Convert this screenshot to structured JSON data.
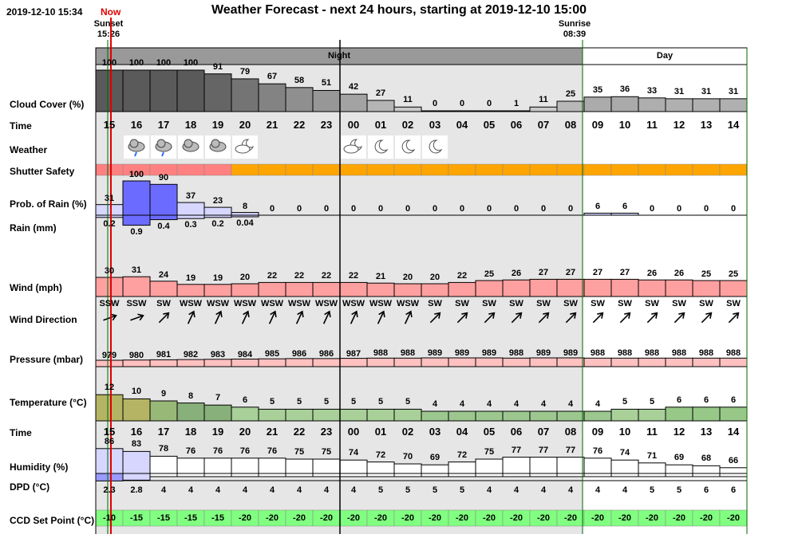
{
  "header": {
    "datetime": "2019-12-10 15:34",
    "now_label": "Now",
    "title": "Weather Forecast - next 24 hours, starting at 2019-12-10 15:00"
  },
  "sun": {
    "sunset_label": "Sunset",
    "sunset_time": "15:26",
    "sunrise_label": "Sunrise",
    "sunrise_time": "08:39"
  },
  "bands": {
    "night": "Night",
    "day": "Day"
  },
  "row_labels": {
    "cloud": "Cloud Cover (%)",
    "time": "Time",
    "weather": "Weather",
    "shutter": "Shutter Safety",
    "rain_prob": "Prob. of Rain (%)",
    "rain_mm": "Rain (mm)",
    "wind": "Wind (mph)",
    "wind_dir": "Wind Direction",
    "pressure": "Pressure (mbar)",
    "temperature": "Temperature (°C)",
    "time2": "Time",
    "humidity": "Humidity (%)",
    "dpd": "DPD (°C)",
    "ccd": "CCD Set Point (°C)"
  },
  "colors": {
    "night_bg": "#e6e6e6",
    "band_night": "#999999",
    "now_line": "#e00000",
    "sun_line": "#006600",
    "shutter_red": "#ff8080",
    "shutter_orange": "#ffa500",
    "wind_fill": "#ffa0a0",
    "pressure_fill": "#ffc0c0",
    "ccd_fill": "#80ff80",
    "rain_strong": "#6b6bff",
    "rain_light": "#d6d6ff"
  },
  "hours": [
    "15",
    "16",
    "17",
    "18",
    "19",
    "20",
    "21",
    "22",
    "23",
    "00",
    "01",
    "02",
    "03",
    "04",
    "05",
    "06",
    "07",
    "08",
    "09",
    "10",
    "11",
    "12",
    "13",
    "14"
  ],
  "cloud_cover": [
    100,
    100,
    100,
    100,
    91,
    79,
    67,
    58,
    51,
    42,
    27,
    11,
    0,
    0,
    0,
    1,
    11,
    25,
    35,
    36,
    33,
    31,
    31,
    31
  ],
  "weather_icons": [
    "",
    "rain-cloud-icon",
    "rain-cloud-icon",
    "cloud-icon",
    "cloud-icon",
    "partly-cloudy-moon-icon",
    "partly-cloudy-moon-icon",
    "moon-icon",
    "moon-icon",
    "moon-icon",
    "",
    "",
    "",
    "",
    "",
    "",
    "",
    "",
    "",
    "",
    "",
    "",
    "",
    ""
  ],
  "weather_icon_cols": [
    1,
    2,
    3,
    4,
    5,
    9,
    10,
    11,
    12
  ],
  "shutter_safety": [
    "unsafe",
    "unsafe",
    "unsafe",
    "unsafe",
    "unsafe",
    "marginal",
    "marginal",
    "marginal",
    "marginal",
    "marginal",
    "marginal",
    "marginal",
    "marginal",
    "marginal",
    "marginal",
    "marginal",
    "marginal",
    "marginal",
    "marginal",
    "marginal",
    "marginal",
    "marginal",
    "marginal",
    "marginal"
  ],
  "rain_prob": [
    31,
    100,
    90,
    37,
    23,
    8,
    0,
    0,
    0,
    0,
    0,
    0,
    0,
    0,
    0,
    0,
    0,
    0,
    6,
    6,
    0,
    0,
    0,
    0
  ],
  "rain_mm": [
    "0.2",
    "0.9",
    "0.4",
    "0.3",
    "0.2",
    "0.04",
    "",
    "",
    "",
    "",
    "",
    "",
    "",
    "",
    "",
    "",
    "",
    "",
    "",
    "",
    "",
    "",
    "",
    ""
  ],
  "wind_mph": [
    30,
    31,
    24,
    19,
    19,
    20,
    22,
    22,
    22,
    22,
    21,
    20,
    20,
    22,
    25,
    26,
    27,
    27,
    27,
    27,
    26,
    26,
    25,
    25
  ],
  "wind_dir": [
    "SSW",
    "SSW",
    "SW",
    "WSW",
    "WSW",
    "WSW",
    "WSW",
    "WSW",
    "WSW",
    "WSW",
    "WSW",
    "WSW",
    "SW",
    "SW",
    "SW",
    "SW",
    "SW",
    "SW",
    "SW",
    "SW",
    "SW",
    "SW",
    "SW",
    "SW"
  ],
  "pressure": [
    979,
    980,
    981,
    982,
    983,
    984,
    985,
    986,
    986,
    987,
    988,
    988,
    989,
    989,
    989,
    988,
    989,
    989,
    988,
    988,
    988,
    988,
    988,
    988
  ],
  "temperature": [
    12,
    10,
    9,
    8,
    7,
    6,
    5,
    5,
    5,
    5,
    5,
    5,
    4,
    4,
    4,
    4,
    4,
    4,
    4,
    5,
    5,
    6,
    6,
    6
  ],
  "humidity": [
    86,
    83,
    78,
    76,
    76,
    76,
    76,
    75,
    75,
    74,
    72,
    70,
    69,
    72,
    75,
    77,
    77,
    77,
    76,
    74,
    71,
    69,
    68,
    66
  ],
  "dpd": [
    "2.3",
    "2.8",
    "4",
    "4",
    "4",
    "4",
    "4",
    "4",
    "4",
    "4",
    "5",
    "5",
    "5",
    "5",
    "4",
    "4",
    "4",
    "4",
    "4",
    "4",
    "5",
    "5",
    "6",
    "6"
  ],
  "ccd_set_point": [
    -10,
    -15,
    -15,
    -15,
    -15,
    -20,
    -20,
    -20,
    -20,
    -20,
    -20,
    -20,
    -20,
    -20,
    -20,
    -20,
    -20,
    -20,
    -20,
    -20,
    -20,
    -20,
    -20,
    -20
  ]
}
